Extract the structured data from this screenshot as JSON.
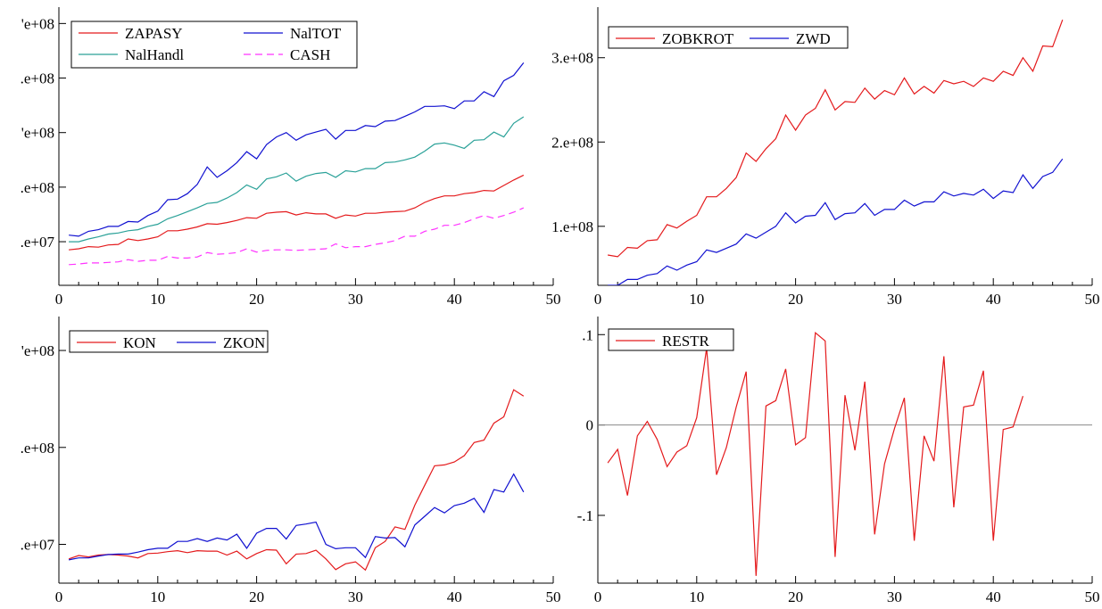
{
  "chart_data": [
    {
      "type": "line",
      "panel": "top-left",
      "x_range": [
        0,
        50
      ],
      "x_ticks": [
        "0",
        "10",
        "20",
        "30",
        "40",
        "50"
      ],
      "y_range": [
        0,
        510000000
      ],
      "y_ticks": [
        {
          "value": 80000000,
          "label": ".e+07"
        },
        {
          "value": 180000000,
          "label": ".e+08"
        },
        {
          "value": 280000000,
          "label": "'e+08"
        },
        {
          "value": 380000000,
          "label": ".e+08"
        },
        {
          "value": 480000000,
          "label": "'e+08"
        }
      ],
      "grid": false,
      "legend_placement": "top-left",
      "legend_columns": 2,
      "x": [
        1,
        2,
        3,
        4,
        5,
        6,
        7,
        8,
        9,
        10,
        11,
        12,
        13,
        14,
        15,
        16,
        17,
        18,
        19,
        20,
        21,
        22,
        23,
        24,
        25,
        26,
        27,
        28,
        29,
        30,
        31,
        32,
        33,
        34,
        35,
        36,
        37,
        38,
        39,
        40,
        41,
        42,
        43,
        44,
        45,
        46,
        47
      ],
      "series": [
        {
          "name": "ZAPASY",
          "color": "#e41a1c",
          "dash": "none",
          "values": [
            65000000,
            67000000,
            71000000,
            70000000,
            74000000,
            75000000,
            85000000,
            82000000,
            85000000,
            89000000,
            100000000,
            100000000,
            103000000,
            107000000,
            113000000,
            112000000,
            115000000,
            119000000,
            124000000,
            123000000,
            132000000,
            134000000,
            135000000,
            129000000,
            133000000,
            131000000,
            131000000,
            123000000,
            129000000,
            127000000,
            132000000,
            132000000,
            134000000,
            135000000,
            136000000,
            142000000,
            152000000,
            159000000,
            164000000,
            164000000,
            168000000,
            170000000,
            174000000,
            173000000,
            183000000,
            193000000,
            202000000
          ]
        },
        {
          "name": "NalTOT",
          "color": "#1010d0",
          "dash": "none",
          "values": [
            92000000,
            90000000,
            99000000,
            102000000,
            108000000,
            108000000,
            117000000,
            116000000,
            128000000,
            136000000,
            157000000,
            158000000,
            168000000,
            185000000,
            217000000,
            198000000,
            210000000,
            225000000,
            245000000,
            232000000,
            258000000,
            272000000,
            280000000,
            266000000,
            276000000,
            281000000,
            286000000,
            268000000,
            284000000,
            284000000,
            293000000,
            291000000,
            301000000,
            302000000,
            310000000,
            318000000,
            328000000,
            328000000,
            329000000,
            324000000,
            338000000,
            338000000,
            355000000,
            346000000,
            375000000,
            385000000,
            408000000
          ]
        },
        {
          "name": "NalHandl",
          "color": "#2aa198",
          "dash": "none",
          "values": [
            80000000,
            80000000,
            85000000,
            89000000,
            94000000,
            96000000,
            100000000,
            102000000,
            108000000,
            112000000,
            122000000,
            128000000,
            135000000,
            142000000,
            150000000,
            152000000,
            160000000,
            170000000,
            184000000,
            176000000,
            195000000,
            199000000,
            206000000,
            191000000,
            200000000,
            205000000,
            207000000,
            198000000,
            210000000,
            208000000,
            214000000,
            214000000,
            225000000,
            226000000,
            230000000,
            235000000,
            246000000,
            259000000,
            261000000,
            257000000,
            251000000,
            266000000,
            267000000,
            281000000,
            272000000,
            297000000,
            309000000
          ]
        },
        {
          "name": "CASH",
          "color": "#ff33ff",
          "dash": "8,5",
          "values": [
            38000000,
            39000000,
            41000000,
            41000000,
            42000000,
            43000000,
            47000000,
            44000000,
            46000000,
            46000000,
            53000000,
            50000000,
            50000000,
            52000000,
            60000000,
            57000000,
            58000000,
            60000000,
            67000000,
            61000000,
            64000000,
            65000000,
            65000000,
            64000000,
            65000000,
            66000000,
            67000000,
            76000000,
            69000000,
            71000000,
            71000000,
            75000000,
            78000000,
            82000000,
            90000000,
            90000000,
            99000000,
            103000000,
            110000000,
            110000000,
            115000000,
            122000000,
            128000000,
            123000000,
            128000000,
            134000000,
            142000000
          ]
        }
      ]
    },
    {
      "type": "line",
      "panel": "top-right",
      "x_range": [
        0,
        50
      ],
      "x_ticks": [
        "0",
        "10",
        "20",
        "30",
        "40",
        "50"
      ],
      "y_range": [
        30000000,
        360000000
      ],
      "y_ticks": [
        {
          "value": 100000000,
          "label": "1.e+08"
        },
        {
          "value": 200000000,
          "label": "2.e+08"
        },
        {
          "value": 300000000,
          "label": "3.e+08"
        }
      ],
      "grid": false,
      "legend_placement": "top-left",
      "legend_columns": 2,
      "x": [
        1,
        2,
        3,
        4,
        5,
        6,
        7,
        8,
        9,
        10,
        11,
        12,
        13,
        14,
        15,
        16,
        17,
        18,
        19,
        20,
        21,
        22,
        23,
        24,
        25,
        26,
        27,
        28,
        29,
        30,
        31,
        32,
        33,
        34,
        35,
        36,
        37,
        38,
        39,
        40,
        41,
        42,
        43,
        44,
        45,
        46,
        47
      ],
      "series": [
        {
          "name": "ZOBKROT",
          "color": "#e41a1c",
          "dash": "none",
          "values": [
            66000000,
            64000000,
            75000000,
            74000000,
            83000000,
            84000000,
            102000000,
            98000000,
            106000000,
            113000000,
            135000000,
            135000000,
            145000000,
            158000000,
            187000000,
            177000000,
            192000000,
            204000000,
            232000000,
            214000000,
            232000000,
            240000000,
            262000000,
            238000000,
            248000000,
            247000000,
            264000000,
            251000000,
            261000000,
            256000000,
            276000000,
            257000000,
            266000000,
            258000000,
            273000000,
            269000000,
            272000000,
            266000000,
            276000000,
            272000000,
            284000000,
            279000000,
            300000000,
            284000000,
            314000000,
            313000000,
            345000000
          ]
        },
        {
          "name": "ZWD",
          "color": "#1010d0",
          "dash": "none",
          "values": [
            30000000,
            30000000,
            37000000,
            37000000,
            42000000,
            44000000,
            53000000,
            48000000,
            54000000,
            58000000,
            72000000,
            69000000,
            74000000,
            79000000,
            91000000,
            86000000,
            93000000,
            100000000,
            116000000,
            104000000,
            112000000,
            113000000,
            128000000,
            108000000,
            115000000,
            116000000,
            127000000,
            113000000,
            120000000,
            120000000,
            131000000,
            124000000,
            129000000,
            129000000,
            141000000,
            136000000,
            139000000,
            137000000,
            144000000,
            133000000,
            142000000,
            140000000,
            161000000,
            145000000,
            159000000,
            164000000,
            180000000
          ]
        }
      ]
    },
    {
      "type": "line",
      "panel": "bottom-left",
      "x_range": [
        0,
        50
      ],
      "x_ticks": [
        "0",
        "10",
        "20",
        "30",
        "40",
        "50"
      ],
      "y_range": [
        20000000,
        570000000
      ],
      "y_ticks": [
        {
          "value": 100000000,
          "label": ".e+07"
        },
        {
          "value": 300000000,
          "label": ".e+08"
        },
        {
          "value": 500000000,
          "label": "'e+08"
        }
      ],
      "grid": false,
      "legend_placement": "top-left",
      "legend_columns": 2,
      "x": [
        1,
        2,
        3,
        4,
        5,
        6,
        7,
        8,
        9,
        10,
        11,
        12,
        13,
        14,
        15,
        16,
        17,
        18,
        19,
        20,
        21,
        22,
        23,
        24,
        25,
        26,
        27,
        28,
        29,
        30,
        31,
        32,
        33,
        34,
        35,
        36,
        37,
        38,
        39,
        40,
        41,
        42,
        43,
        44,
        45,
        46,
        47
      ],
      "series": [
        {
          "name": "KON",
          "color": "#e41a1c",
          "dash": "none",
          "values": [
            70000000,
            77000000,
            74000000,
            78000000,
            79000000,
            78000000,
            76000000,
            72000000,
            81000000,
            82000000,
            85000000,
            87000000,
            83000000,
            87000000,
            86000000,
            86000000,
            78000000,
            86000000,
            70000000,
            81000000,
            89000000,
            88000000,
            60000000,
            80000000,
            81000000,
            88000000,
            70000000,
            48000000,
            60000000,
            64000000,
            47000000,
            93000000,
            106000000,
            136000000,
            131000000,
            181000000,
            222000000,
            262000000,
            264000000,
            270000000,
            283000000,
            310000000,
            315000000,
            350000000,
            363000000,
            419000000,
            406000000
          ]
        },
        {
          "name": "ZKON",
          "color": "#1010d0",
          "dash": "none",
          "values": [
            68000000,
            72000000,
            72000000,
            76000000,
            79000000,
            80000000,
            80000000,
            84000000,
            89000000,
            92000000,
            92000000,
            106000000,
            106000000,
            112000000,
            106000000,
            113000000,
            109000000,
            121000000,
            92000000,
            123000000,
            133000000,
            133000000,
            111000000,
            139000000,
            142000000,
            146000000,
            100000000,
            91000000,
            93000000,
            93000000,
            73000000,
            116000000,
            113000000,
            114000000,
            95000000,
            140000000,
            158000000,
            176000000,
            165000000,
            180000000,
            185000000,
            195000000,
            166000000,
            213000000,
            208000000,
            245000000,
            208000000
          ]
        }
      ]
    },
    {
      "type": "line",
      "panel": "bottom-right",
      "x_range": [
        0,
        50
      ],
      "x_ticks": [
        "0",
        "10",
        "20",
        "30",
        "40",
        "50"
      ],
      "y_range": [
        -0.175,
        0.12
      ],
      "y_ticks": [
        {
          "value": -0.1,
          "label": "-.1"
        },
        {
          "value": 0,
          "label": "0"
        },
        {
          "value": 0.1,
          "label": ".1"
        }
      ],
      "reference_line": 0,
      "grid": false,
      "legend_placement": "top-left",
      "legend_columns": 1,
      "x": [
        1,
        2,
        3,
        4,
        5,
        6,
        7,
        8,
        9,
        10,
        11,
        12,
        13,
        14,
        15,
        16,
        17,
        18,
        19,
        20,
        21,
        22,
        23,
        24,
        25,
        26,
        27,
        28,
        29,
        30,
        31,
        32,
        33,
        34,
        35,
        36,
        37,
        38,
        39,
        40,
        41,
        42,
        43
      ],
      "series": [
        {
          "name": "RESTR",
          "color": "#e41a1c",
          "dash": "none",
          "values": [
            -0.042,
            -0.027,
            -0.078,
            -0.012,
            0.004,
            -0.016,
            -0.046,
            -0.03,
            -0.023,
            0.008,
            0.085,
            -0.055,
            -0.025,
            0.02,
            0.059,
            -0.167,
            0.021,
            0.027,
            0.062,
            -0.022,
            -0.014,
            0.102,
            0.093,
            -0.146,
            0.033,
            -0.028,
            0.048,
            -0.121,
            -0.043,
            -0.004,
            0.03,
            -0.128,
            -0.012,
            -0.04,
            0.076,
            -0.091,
            0.02,
            0.022,
            0.06,
            -0.128,
            -0.005,
            -0.002,
            0.032
          ]
        }
      ]
    }
  ]
}
